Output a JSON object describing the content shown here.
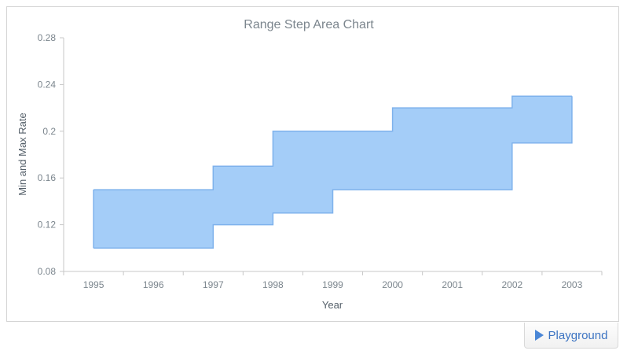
{
  "chart_data": {
    "type": "area",
    "subtype": "range-step-area",
    "title": "Range Step Area Chart",
    "xlabel": "Year",
    "ylabel": "Min and Max Rate",
    "categories": [
      "1995",
      "1996",
      "1997",
      "1998",
      "1999",
      "2000",
      "2001",
      "2002",
      "2003"
    ],
    "low": [
      0.1,
      0.1,
      0.12,
      0.13,
      0.15,
      0.15,
      0.15,
      0.19,
      0.2
    ],
    "high": [
      0.15,
      0.15,
      0.17,
      0.2,
      0.2,
      0.22,
      0.22,
      0.23,
      0.23
    ],
    "ylim": [
      0.08,
      0.28
    ],
    "yticks": [
      "0.08",
      "0.12",
      "0.16",
      "0.2",
      "0.24",
      "0.28"
    ],
    "grid": false,
    "legend": "none",
    "fill_color": "#a4cdf8",
    "stroke_color": "#7fb2ec"
  },
  "toolbar": {
    "playground_label": "Playground",
    "playground_icon": "play-icon"
  }
}
